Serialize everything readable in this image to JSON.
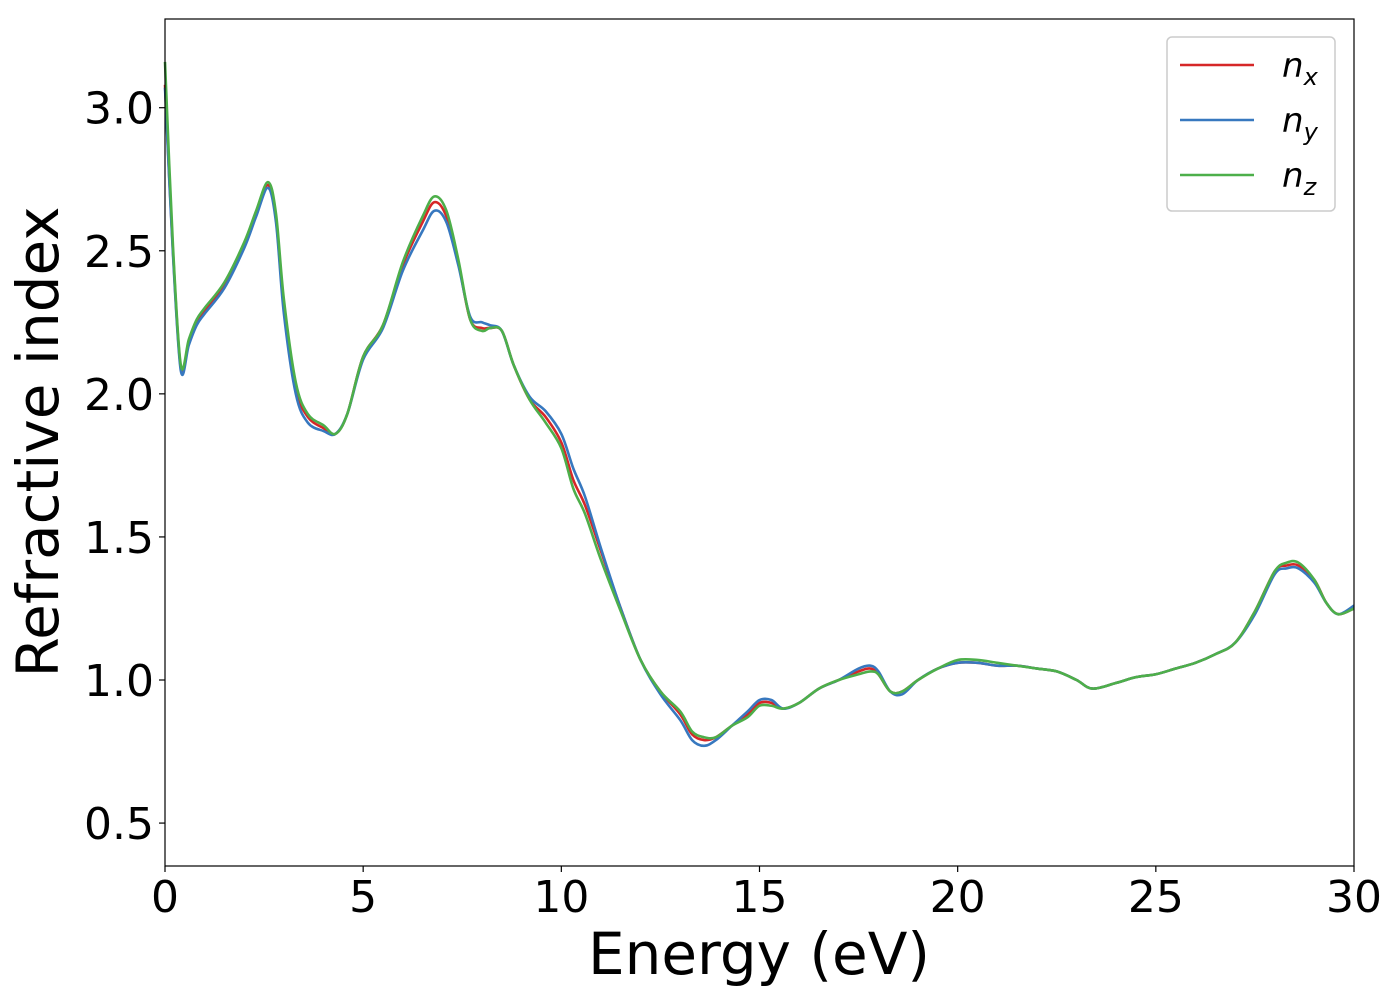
{
  "chart_data": {
    "type": "line",
    "title": "",
    "xlabel": "Energy (eV)",
    "ylabel": "Refractive index",
    "xlim": [
      0,
      30
    ],
    "ylim": [
      0.35,
      3.31
    ],
    "xticks": [
      0,
      5,
      10,
      15,
      20,
      25,
      30
    ],
    "xtick_labels": [
      "0",
      "5",
      "10",
      "15",
      "20",
      "25",
      "30"
    ],
    "yticks": [
      0.5,
      1.0,
      1.5,
      2.0,
      2.5,
      3.0
    ],
    "ytick_labels": [
      "0.5",
      "1.0",
      "1.5",
      "2.0",
      "2.5",
      "3.0"
    ],
    "grid": false,
    "legend_position": "top-right",
    "x": [
      0,
      0.2,
      0.4,
      0.6,
      0.8,
      1.0,
      1.5,
      2.0,
      2.3,
      2.6,
      2.8,
      3.0,
      3.3,
      3.6,
      4.0,
      4.3,
      4.6,
      5.0,
      5.5,
      6.0,
      6.5,
      6.8,
      7.1,
      7.4,
      7.7,
      8.0,
      8.2,
      8.5,
      8.8,
      9.2,
      9.6,
      10.0,
      10.3,
      10.6,
      11.0,
      11.5,
      12.0,
      12.5,
      13.0,
      13.3,
      13.6,
      13.9,
      14.3,
      14.7,
      15.0,
      15.3,
      15.6,
      16.0,
      16.5,
      17.0,
      17.5,
      17.8,
      18.0,
      18.3,
      18.6,
      19.0,
      19.5,
      20.0,
      20.5,
      21.0,
      21.5,
      22.0,
      22.5,
      23.0,
      23.4,
      24.0,
      24.5,
      25.0,
      25.5,
      26.0,
      26.5,
      27.0,
      27.5,
      28.0,
      28.3,
      28.6,
      29.0,
      29.3,
      29.6,
      30.0
    ],
    "series": [
      {
        "name": "x",
        "color": "#d62728",
        "values": [
          3.08,
          2.5,
          2.09,
          2.18,
          2.25,
          2.29,
          2.38,
          2.52,
          2.63,
          2.73,
          2.61,
          2.3,
          2.02,
          1.92,
          1.88,
          1.86,
          1.93,
          2.13,
          2.24,
          2.45,
          2.6,
          2.67,
          2.62,
          2.46,
          2.26,
          2.23,
          2.23,
          2.22,
          2.1,
          1.98,
          1.92,
          1.83,
          1.7,
          1.61,
          1.45,
          1.25,
          1.07,
          0.96,
          0.88,
          0.81,
          0.79,
          0.8,
          0.84,
          0.88,
          0.92,
          0.92,
          0.9,
          0.92,
          0.97,
          1.0,
          1.03,
          1.04,
          1.02,
          0.96,
          0.96,
          1.0,
          1.04,
          1.06,
          1.06,
          1.05,
          1.05,
          1.04,
          1.03,
          1.0,
          0.97,
          0.99,
          1.01,
          1.02,
          1.04,
          1.06,
          1.09,
          1.13,
          1.24,
          1.38,
          1.4,
          1.4,
          1.35,
          1.27,
          1.23,
          1.25
        ]
      },
      {
        "name": "y",
        "color": "#3778bf",
        "values": [
          3.07,
          2.49,
          2.08,
          2.17,
          2.24,
          2.28,
          2.37,
          2.51,
          2.62,
          2.72,
          2.6,
          2.28,
          2.0,
          1.9,
          1.87,
          1.86,
          1.93,
          2.12,
          2.23,
          2.43,
          2.57,
          2.64,
          2.6,
          2.45,
          2.27,
          2.25,
          2.24,
          2.22,
          2.1,
          1.99,
          1.94,
          1.86,
          1.74,
          1.64,
          1.46,
          1.25,
          1.07,
          0.95,
          0.86,
          0.79,
          0.77,
          0.79,
          0.84,
          0.89,
          0.93,
          0.93,
          0.9,
          0.92,
          0.97,
          1.0,
          1.04,
          1.05,
          1.03,
          0.96,
          0.95,
          1.0,
          1.04,
          1.06,
          1.06,
          1.05,
          1.05,
          1.04,
          1.03,
          1.0,
          0.97,
          0.99,
          1.01,
          1.02,
          1.04,
          1.06,
          1.09,
          1.13,
          1.23,
          1.37,
          1.39,
          1.39,
          1.34,
          1.27,
          1.23,
          1.26
        ]
      },
      {
        "name": "z",
        "color": "#4daf4a",
        "values": [
          3.16,
          2.52,
          2.1,
          2.19,
          2.26,
          2.3,
          2.39,
          2.53,
          2.64,
          2.74,
          2.63,
          2.33,
          2.04,
          1.93,
          1.89,
          1.86,
          1.93,
          2.13,
          2.24,
          2.46,
          2.62,
          2.69,
          2.64,
          2.47,
          2.26,
          2.22,
          2.23,
          2.22,
          2.1,
          1.98,
          1.9,
          1.81,
          1.67,
          1.58,
          1.42,
          1.24,
          1.07,
          0.96,
          0.89,
          0.82,
          0.8,
          0.8,
          0.84,
          0.87,
          0.91,
          0.91,
          0.9,
          0.92,
          0.97,
          1.0,
          1.02,
          1.03,
          1.02,
          0.96,
          0.96,
          1.0,
          1.04,
          1.07,
          1.07,
          1.06,
          1.05,
          1.04,
          1.03,
          1.0,
          0.97,
          0.99,
          1.01,
          1.02,
          1.04,
          1.06,
          1.09,
          1.13,
          1.24,
          1.38,
          1.41,
          1.41,
          1.35,
          1.27,
          1.23,
          1.25
        ]
      }
    ],
    "legend": [
      {
        "base": "n",
        "sub": "x",
        "color": "#d62728"
      },
      {
        "base": "n",
        "sub": "y",
        "color": "#3778bf"
      },
      {
        "base": "n",
        "sub": "z",
        "color": "#4daf4a"
      }
    ]
  }
}
